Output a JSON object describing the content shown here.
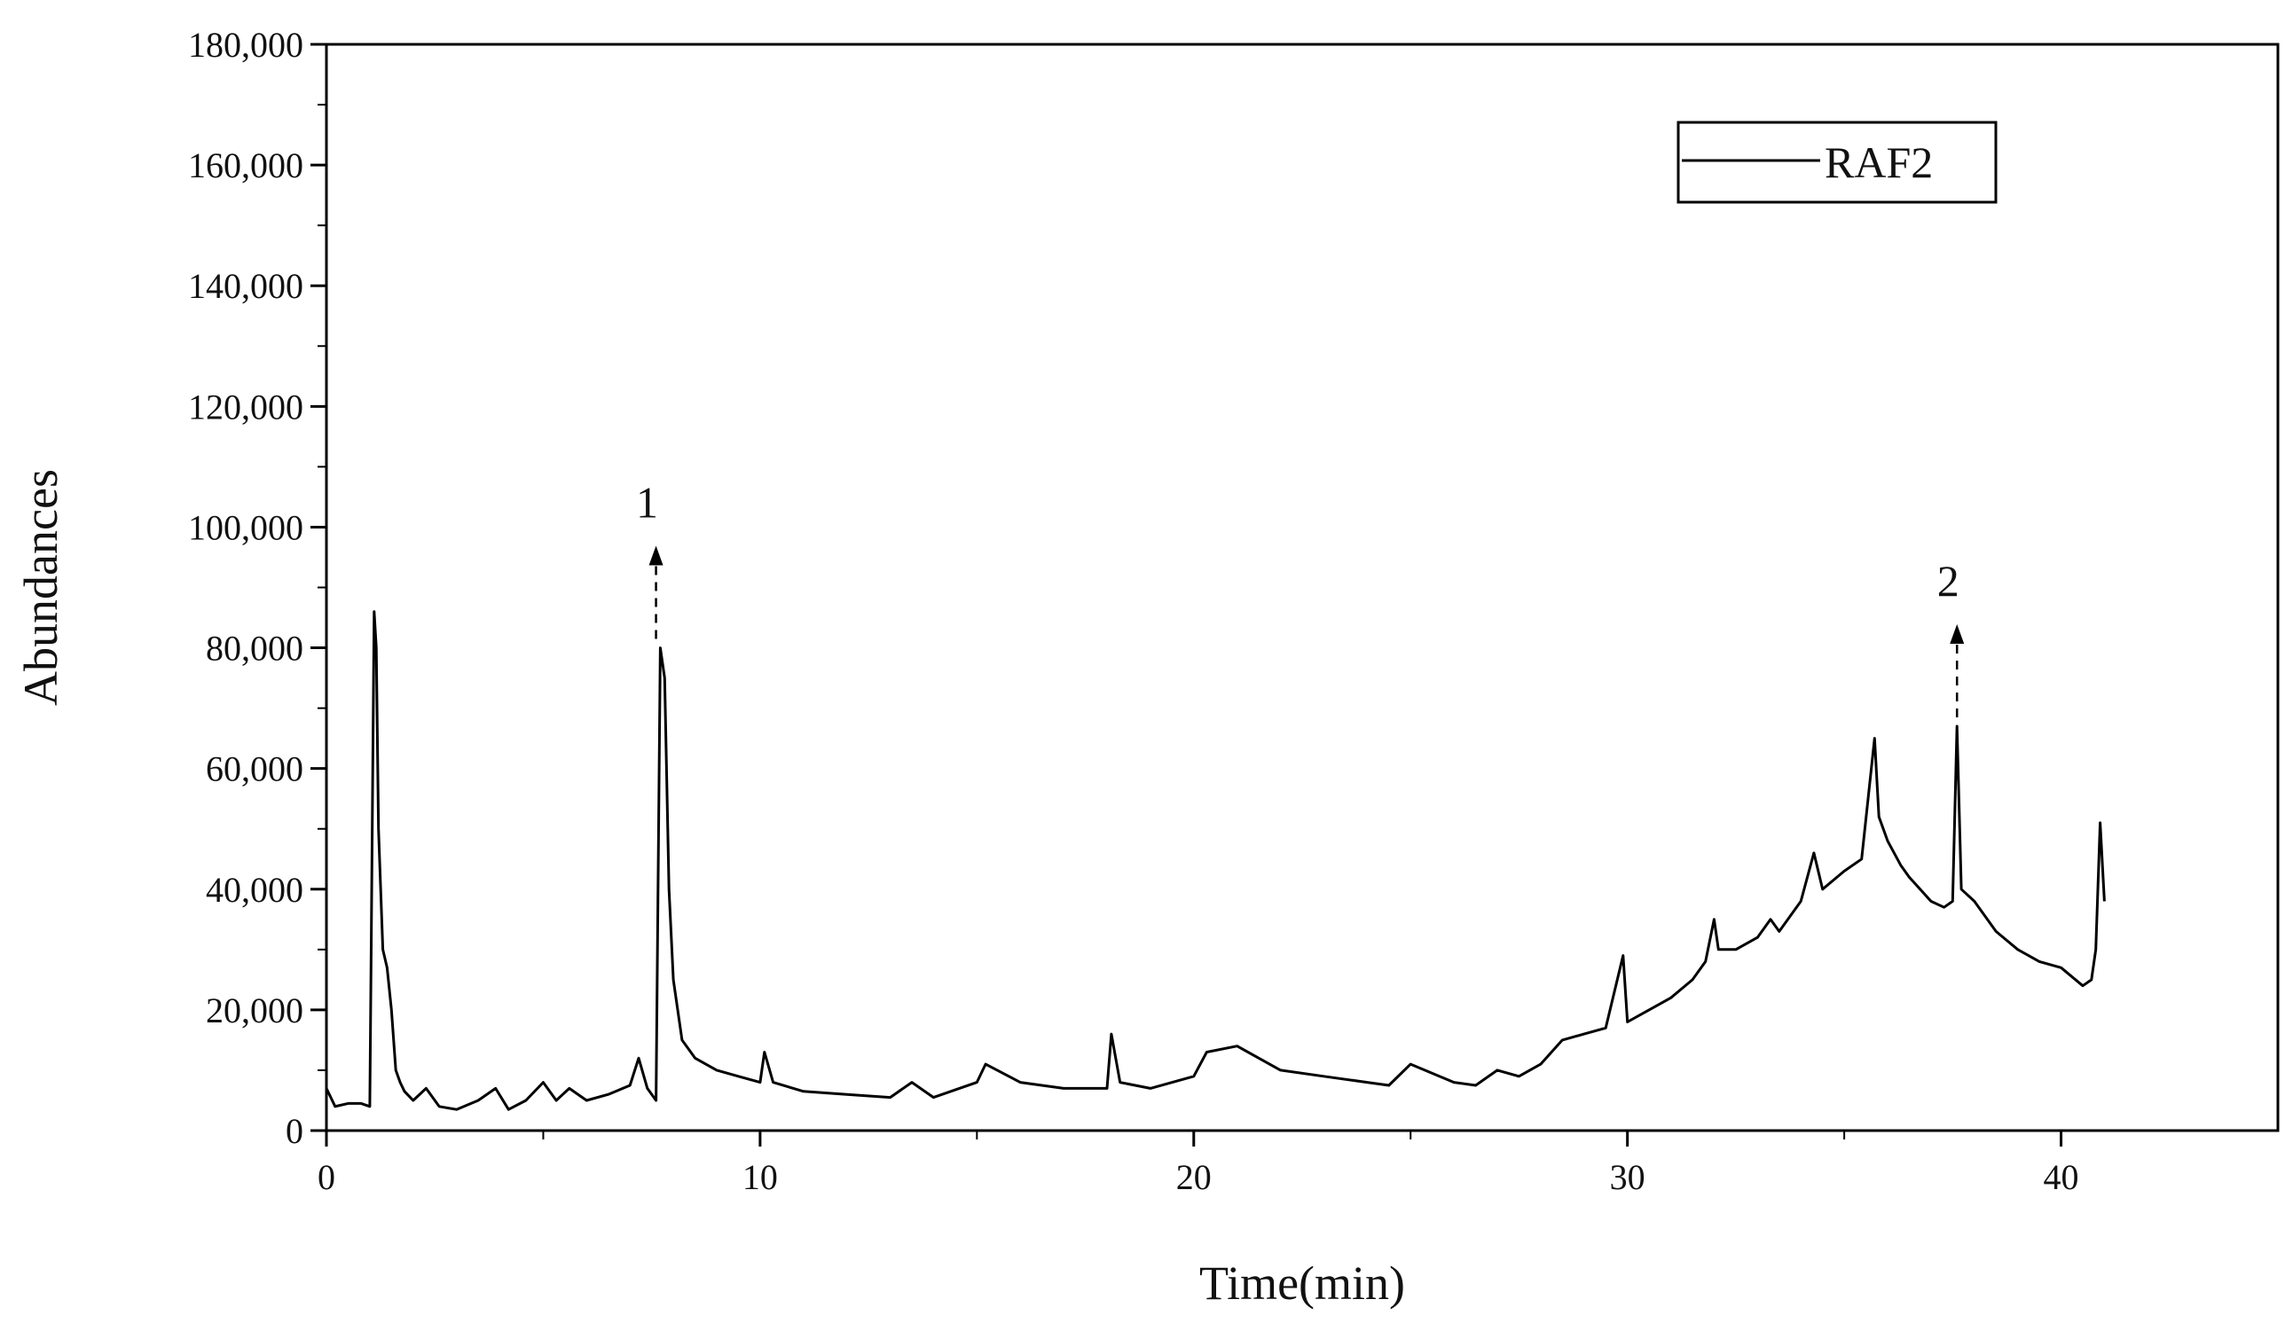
{
  "chart_data": {
    "type": "line",
    "title": "",
    "xlabel": "Time(min)",
    "ylabel": "Abundances",
    "xlim": [
      0,
      45
    ],
    "ylim": [
      0,
      180000
    ],
    "x_ticks": [
      0,
      10,
      20,
      30,
      40
    ],
    "x_tick_labels": [
      "0",
      "10",
      "20",
      "30",
      "40"
    ],
    "y_ticks": [
      0,
      20000,
      40000,
      60000,
      80000,
      100000,
      120000,
      140000,
      160000,
      180000
    ],
    "y_tick_labels": [
      "0",
      "20,000",
      "40,000",
      "60,000",
      "80,000",
      "100,000",
      "120,000",
      "140,000",
      "160,000",
      "180,000"
    ],
    "grid": false,
    "legend": {
      "position": "top-right",
      "entries": [
        "RAF2"
      ]
    },
    "series": [
      {
        "name": "RAF2",
        "color": "#000000",
        "x": [
          0,
          0.2,
          0.5,
          0.8,
          1.0,
          1.1,
          1.15,
          1.2,
          1.3,
          1.4,
          1.5,
          1.6,
          1.7,
          1.8,
          2.0,
          2.3,
          2.6,
          3.0,
          3.5,
          3.9,
          4.2,
          4.6,
          5.0,
          5.3,
          5.6,
          6.0,
          6.5,
          7.0,
          7.2,
          7.4,
          7.6,
          7.7,
          7.8,
          7.9,
          8.0,
          8.2,
          8.5,
          9.0,
          9.5,
          10.0,
          10.1,
          10.3,
          11.0,
          12.0,
          13.0,
          13.5,
          14.0,
          15.0,
          15.2,
          16.0,
          17.0,
          18.0,
          18.1,
          18.3,
          19.0,
          20.0,
          20.3,
          21.0,
          21.5,
          22.0,
          23.0,
          24.0,
          24.5,
          25.0,
          26.0,
          26.5,
          27.0,
          27.5,
          28.0,
          28.5,
          29.0,
          29.5,
          29.9,
          30.0,
          30.5,
          31.0,
          31.5,
          31.8,
          32.0,
          32.1,
          32.5,
          33.0,
          33.3,
          33.5,
          34.0,
          34.3,
          34.5,
          35.0,
          35.4,
          35.7,
          35.8,
          36.0,
          36.3,
          36.5,
          37.0,
          37.3,
          37.5,
          37.6,
          37.7,
          38.0,
          38.5,
          39.0,
          39.5,
          40.0,
          40.5,
          40.7,
          40.8,
          40.9,
          41.0
        ],
        "y": [
          7000,
          4000,
          4500,
          4500,
          4000,
          86000,
          80000,
          50000,
          30000,
          27000,
          20000,
          10000,
          8000,
          6500,
          5000,
          7000,
          4000,
          3500,
          5000,
          7000,
          3500,
          5000,
          8000,
          5000,
          7000,
          5000,
          6000,
          7500,
          12000,
          7000,
          5000,
          80000,
          75000,
          40000,
          25000,
          15000,
          12000,
          10000,
          9000,
          8000,
          13000,
          8000,
          6500,
          6000,
          5500,
          8000,
          5500,
          8000,
          11000,
          8000,
          7000,
          7000,
          16000,
          8000,
          7000,
          9000,
          13000,
          14000,
          12000,
          10000,
          9000,
          8000,
          7500,
          11000,
          8000,
          7500,
          10000,
          9000,
          11000,
          15000,
          16000,
          17000,
          29000,
          18000,
          20000,
          22000,
          25000,
          28000,
          35000,
          30000,
          30000,
          32000,
          35000,
          33000,
          38000,
          46000,
          40000,
          43000,
          45000,
          65000,
          52000,
          48000,
          44000,
          42000,
          38000,
          37000,
          38000,
          67000,
          40000,
          38000,
          33000,
          30000,
          28000,
          27000,
          24000,
          25000,
          30000,
          51000,
          38000
        ]
      }
    ],
    "annotations": [
      {
        "label": "1",
        "x": 7.6
      },
      {
        "label": "2",
        "x": 37.6
      }
    ]
  }
}
